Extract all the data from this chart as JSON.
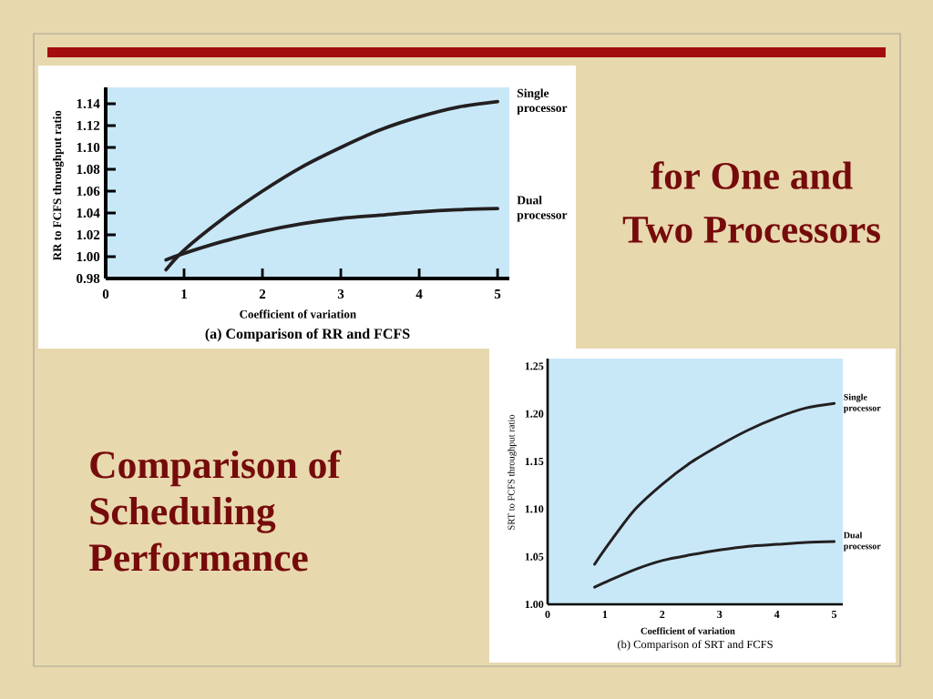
{
  "chart_data": [
    {
      "type": "line",
      "title": "(a) Comparison of RR and FCFS",
      "xlabel": "Coefficient of variation",
      "ylabel": "RR to FCFS throughput ratio",
      "x": [
        0.77,
        1,
        1.5,
        2,
        2.5,
        3,
        3.5,
        4,
        4.5,
        5
      ],
      "series": [
        {
          "name": "Single processor",
          "color": "#231f20",
          "values": [
            0.988,
            1.006,
            1.035,
            1.06,
            1.082,
            1.1,
            1.116,
            1.128,
            1.137,
            1.142
          ]
        },
        {
          "name": "Dual processor",
          "color": "#231f20",
          "values": [
            0.997,
            1.003,
            1.014,
            1.023,
            1.03,
            1.035,
            1.038,
            1.041,
            1.043,
            1.044
          ]
        }
      ],
      "xlim": [
        0,
        5.15
      ],
      "ylim": [
        0.98,
        1.155
      ],
      "xticks": [
        0,
        1,
        2,
        3,
        4,
        5
      ],
      "yticks": [
        0.98,
        {
          "value": 1.0,
          "label": "1.00"
        },
        1.02,
        1.04,
        1.06,
        1.08,
        {
          "value": 1.1,
          "label": "1.10"
        },
        1.12,
        1.14
      ]
    },
    {
      "type": "line",
      "title": "(b) Comparison of SRT and FCFS",
      "xlabel": "Coefficient of variation",
      "ylabel": "SRT to FCFS throughput ratio",
      "x": [
        0.82,
        1,
        1.5,
        2,
        2.5,
        3,
        3.5,
        4,
        4.5,
        5
      ],
      "series": [
        {
          "name": "Single processor",
          "color": "#231f20",
          "values": [
            1.042,
            1.058,
            1.098,
            1.126,
            1.149,
            1.167,
            1.183,
            1.196,
            1.206,
            1.211
          ]
        },
        {
          "name": "Dual processor",
          "color": "#231f20",
          "values": [
            1.018,
            1.023,
            1.036,
            1.046,
            1.052,
            1.057,
            1.061,
            1.063,
            1.065,
            1.066
          ]
        }
      ],
      "xlim": [
        0,
        5.15
      ],
      "ylim": [
        1.0,
        1.258
      ],
      "xticks": [
        0,
        1,
        2,
        3,
        4,
        5
      ],
      "yticks": [
        {
          "value": 1.0,
          "label": "1.00"
        },
        1.05,
        {
          "value": 1.1,
          "label": "1.10"
        },
        1.15,
        {
          "value": 1.2,
          "label": "1.20"
        },
        1.25
      ]
    },
    {
      "type": "other",
      "title": "Comparison of Scheduling Performance",
      "subtitle": "for One and Two Processors"
    }
  ]
}
